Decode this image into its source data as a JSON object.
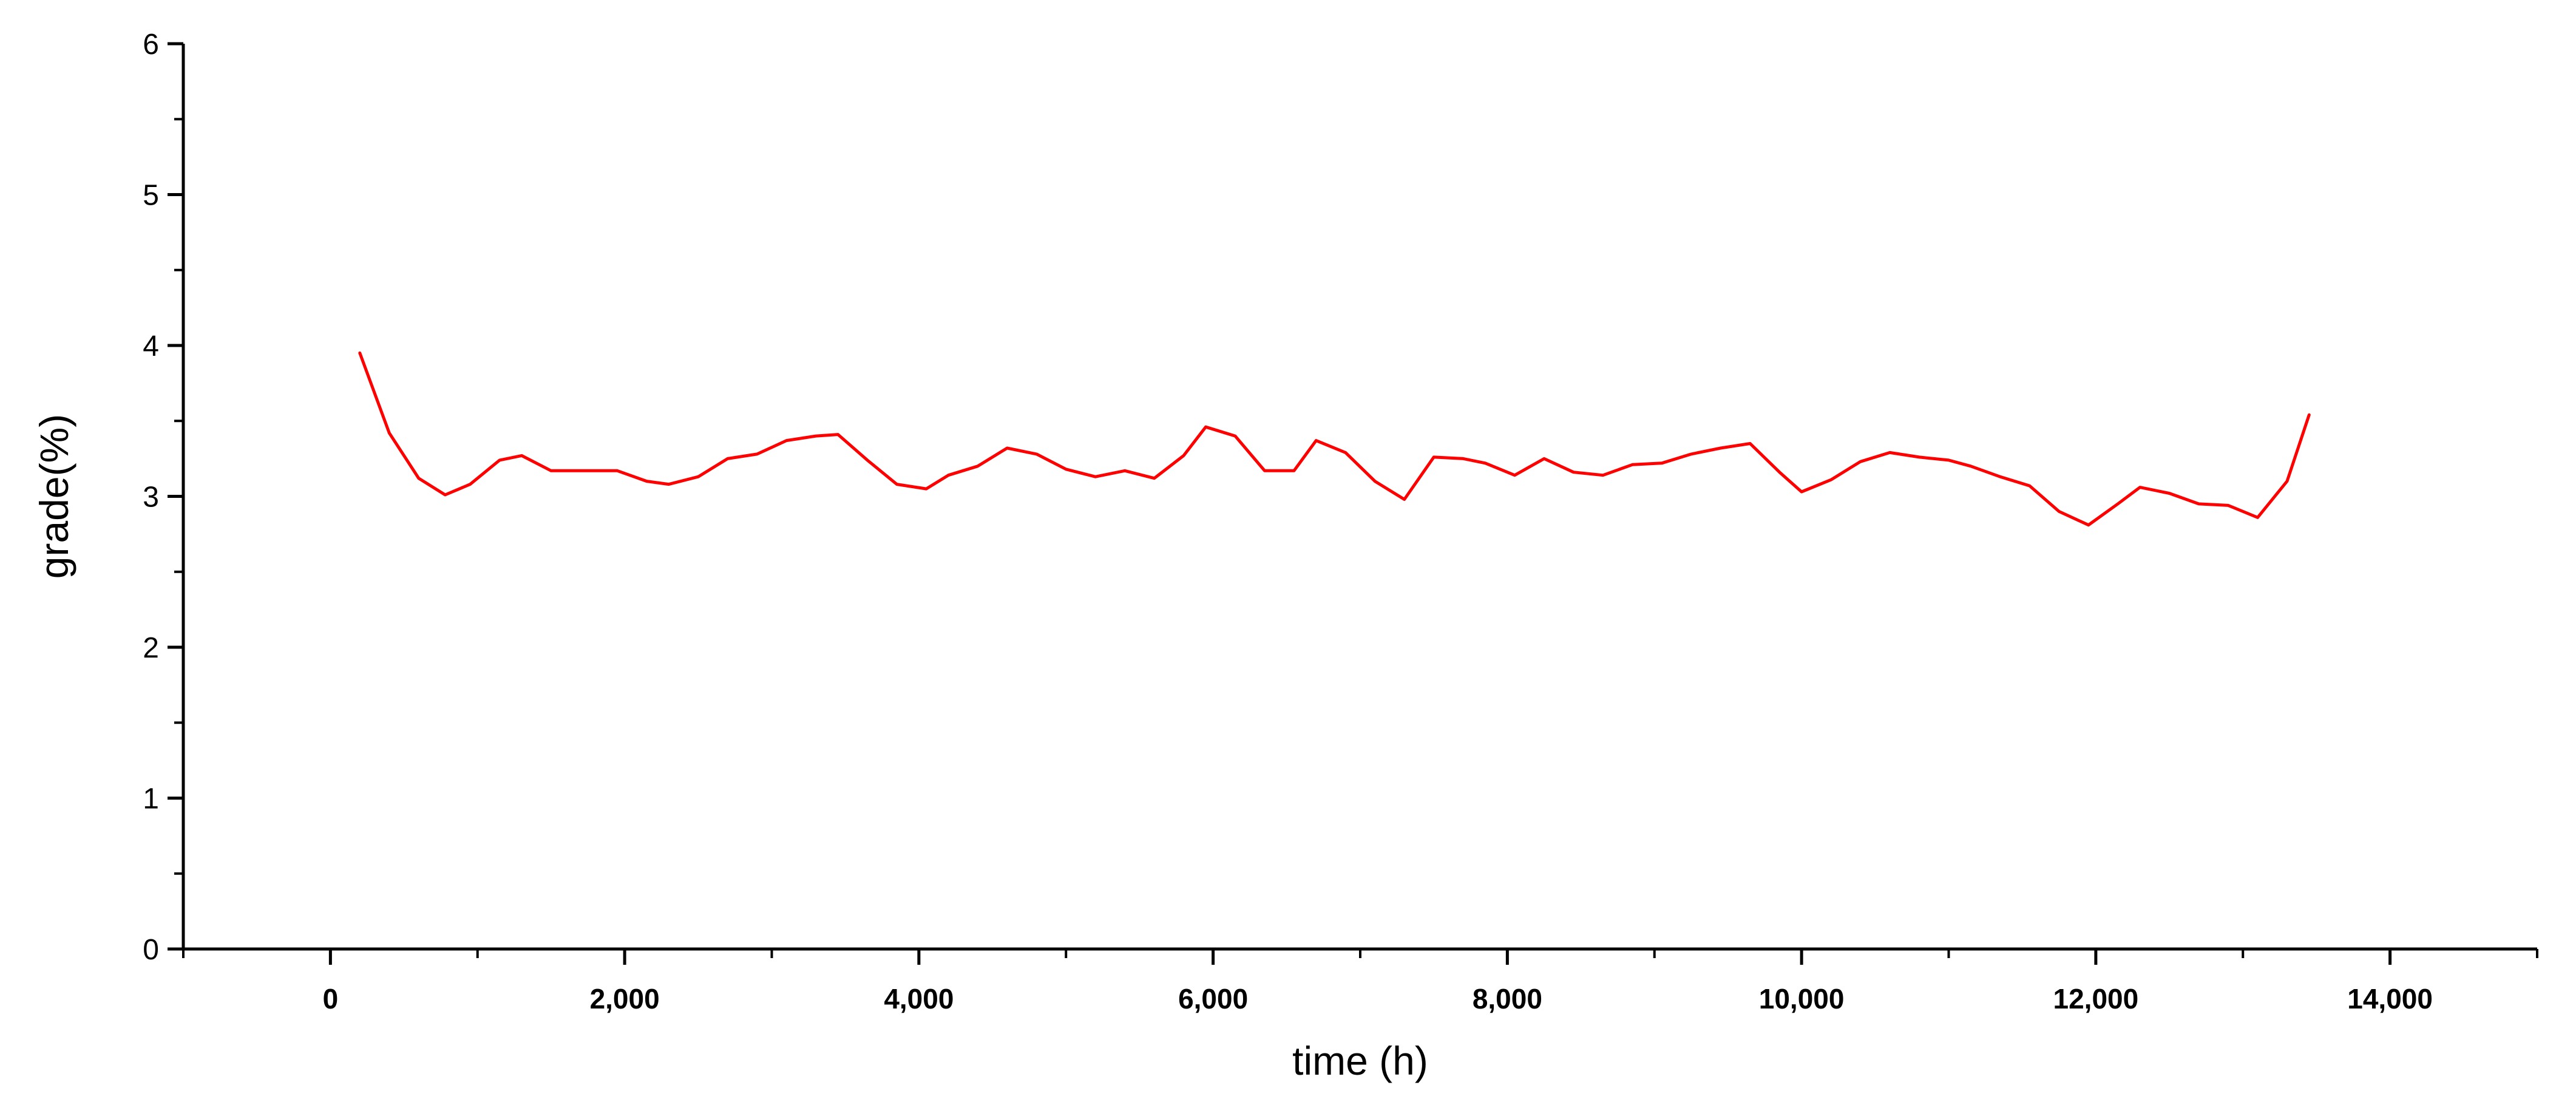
{
  "chart_data": {
    "type": "line",
    "title": "",
    "xlabel": "time (h)",
    "ylabel": "grade(%)",
    "xlim": [
      -1000,
      15000
    ],
    "ylim": [
      0,
      6
    ],
    "x_ticks": [
      0,
      2000,
      4000,
      6000,
      8000,
      10000,
      12000,
      14000
    ],
    "x_tick_labels": [
      "0",
      "2,000",
      "4,000",
      "6,000",
      "8,000",
      "10,000",
      "12,000",
      "14,000"
    ],
    "y_ticks": [
      0,
      1,
      2,
      3,
      4,
      5,
      6
    ],
    "y_tick_labels": [
      "0",
      "1",
      "2",
      "3",
      "4",
      "5",
      "6"
    ],
    "grid": false,
    "legend": "none",
    "series": [
      {
        "color": "#ff0000",
        "x": [
          200,
          400,
          600,
          780,
          950,
          1150,
          1300,
          1500,
          1750,
          1950,
          2150,
          2300,
          2500,
          2700,
          2900,
          3100,
          3300,
          3450,
          3650,
          3850,
          4050,
          4200,
          4400,
          4600,
          4800,
          5000,
          5200,
          5400,
          5600,
          5800,
          5950,
          6150,
          6350,
          6550,
          6700,
          6900,
          7100,
          7300,
          7500,
          7700,
          7850,
          8050,
          8250,
          8450,
          8650,
          8850,
          9050,
          9250,
          9450,
          9650,
          9850,
          10000,
          10200,
          10400,
          10600,
          10800,
          11000,
          11150,
          11350,
          11550,
          11750,
          11950,
          12150,
          12300,
          12500,
          12700,
          12900,
          13100,
          13300,
          13450
        ],
        "y": [
          3.95,
          3.42,
          3.12,
          3.01,
          3.08,
          3.24,
          3.27,
          3.17,
          3.17,
          3.17,
          3.1,
          3.08,
          3.13,
          3.25,
          3.28,
          3.37,
          3.4,
          3.41,
          3.24,
          3.08,
          3.05,
          3.14,
          3.2,
          3.32,
          3.28,
          3.18,
          3.13,
          3.17,
          3.12,
          3.27,
          3.46,
          3.4,
          3.17,
          3.17,
          3.37,
          3.29,
          3.1,
          2.98,
          3.26,
          3.25,
          3.22,
          3.14,
          3.25,
          3.16,
          3.14,
          3.21,
          3.22,
          3.28,
          3.32,
          3.35,
          3.16,
          3.03,
          3.11,
          3.23,
          3.29,
          3.26,
          3.24,
          3.2,
          3.13,
          3.07,
          2.9,
          2.81,
          2.95,
          3.06,
          3.02,
          2.95,
          2.94,
          2.86,
          3.1,
          3.54
        ]
      }
    ]
  }
}
